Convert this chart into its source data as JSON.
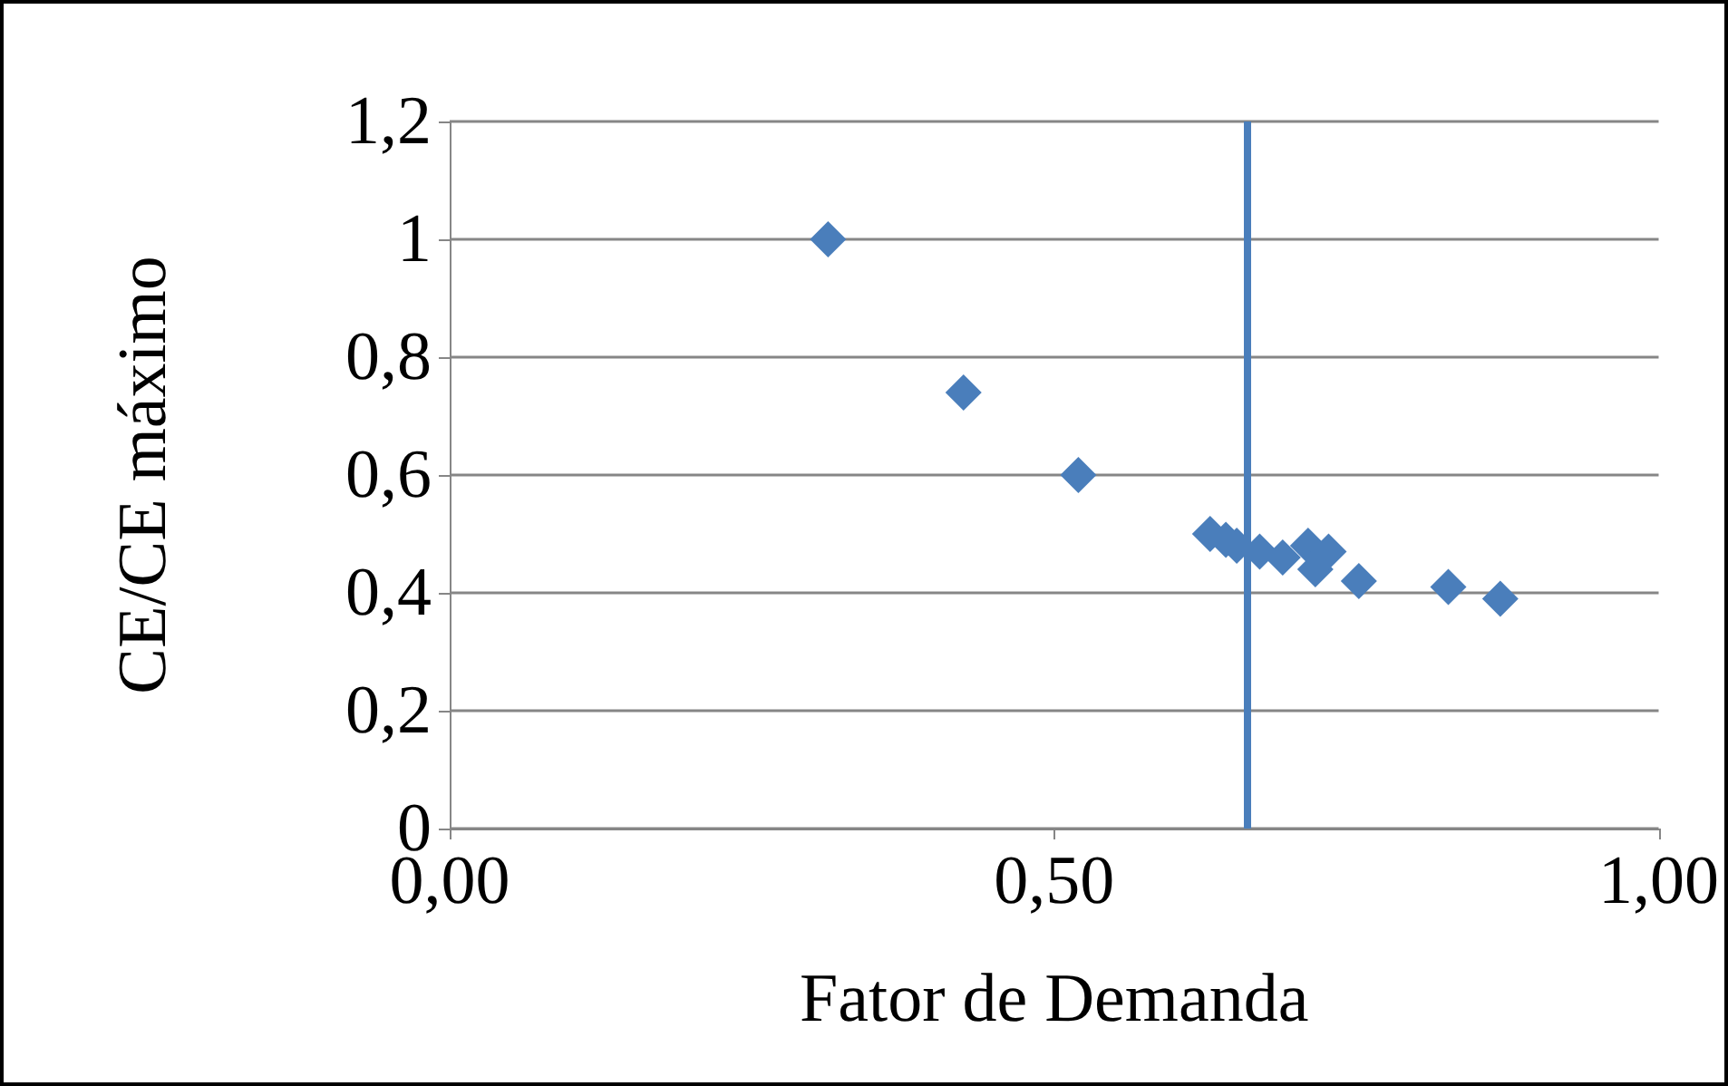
{
  "chart_data": {
    "type": "scatter",
    "xlabel": "Fator de Demanda",
    "ylabel": "CE/CE máximo",
    "x": [
      0.313,
      0.425,
      0.52,
      0.629,
      0.642,
      0.651,
      0.67,
      0.689,
      0.71,
      0.716,
      0.727,
      0.752,
      0.826,
      0.869
    ],
    "series": [
      {
        "color": "#4a7ebb",
        "values": [
          1.0,
          0.74,
          0.6,
          0.5,
          0.49,
          0.48,
          0.47,
          0.46,
          0.48,
          0.44,
          0.47,
          0.42,
          0.41,
          0.39
        ]
      }
    ],
    "marker": "diamond",
    "grid": "y",
    "xlim": [
      0,
      1
    ],
    "xticks": [
      {
        "value": 0,
        "label": "0,00"
      },
      {
        "value": 0.5,
        "label": "0,50"
      },
      {
        "value": 1,
        "label": "1,00"
      }
    ],
    "ylim": [
      0,
      1.2
    ],
    "yticks": [
      0,
      {
        "value": 0.2,
        "label": "0,2"
      },
      {
        "value": 0.4,
        "label": "0,4"
      },
      {
        "value": 0.6,
        "label": "0,6"
      },
      {
        "value": 0.8,
        "label": "0,8"
      },
      1,
      {
        "value": 1.2,
        "label": "1,2"
      }
    ],
    "ref_lines": [
      {
        "axis": "x",
        "value": 0.66,
        "color": "#4a7ebb"
      }
    ]
  }
}
